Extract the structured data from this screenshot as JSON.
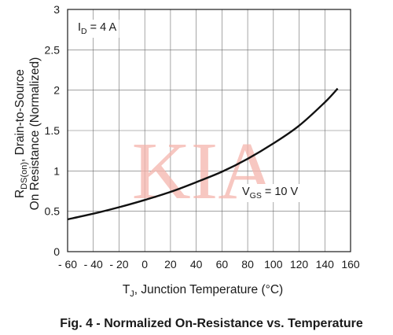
{
  "chart_data": {
    "type": "line",
    "caption": "Fig. 4 - Normalized On-Resistance vs. Temperature",
    "xlabel": {
      "main": "T",
      "sub": "J",
      "rest": ", Junction Temperature (°C)"
    },
    "ylabel": {
      "line1_pre": "R",
      "line1_sub": "DS(on)",
      "line1_rest": ", Drain-to-Source",
      "line2": "On Resistance (Normalized)"
    },
    "xlim": [
      -60,
      160
    ],
    "ylim": [
      0,
      3
    ],
    "x_ticks": [
      -60,
      -40,
      -20,
      0,
      20,
      40,
      60,
      80,
      100,
      120,
      140,
      160
    ],
    "x_tick_labels": [
      "- 60",
      "- 40",
      "- 20",
      "0",
      "20",
      "40",
      "60",
      "80",
      "100",
      "120",
      "140",
      "160"
    ],
    "y_ticks": [
      0,
      0.5,
      1,
      1.5,
      2,
      2.5,
      3
    ],
    "y_tick_labels": [
      "0",
      "0.5",
      "1",
      "1.5",
      "2",
      "2.5",
      "3"
    ],
    "grid": true,
    "annotations": {
      "id": {
        "main": "I",
        "sub": "D",
        "rest": " = 4 A"
      },
      "vgs": {
        "main": "V",
        "sub": "GS",
        "rest": " = 10 V"
      }
    },
    "watermark": "KIA",
    "series": [
      {
        "x": [
          -60,
          -40,
          -20,
          0,
          20,
          40,
          60,
          80,
          100,
          120,
          140,
          150
        ],
        "y": [
          0.4,
          0.47,
          0.55,
          0.64,
          0.74,
          0.86,
          0.99,
          1.15,
          1.34,
          1.56,
          1.85,
          2.02
        ]
      }
    ]
  }
}
